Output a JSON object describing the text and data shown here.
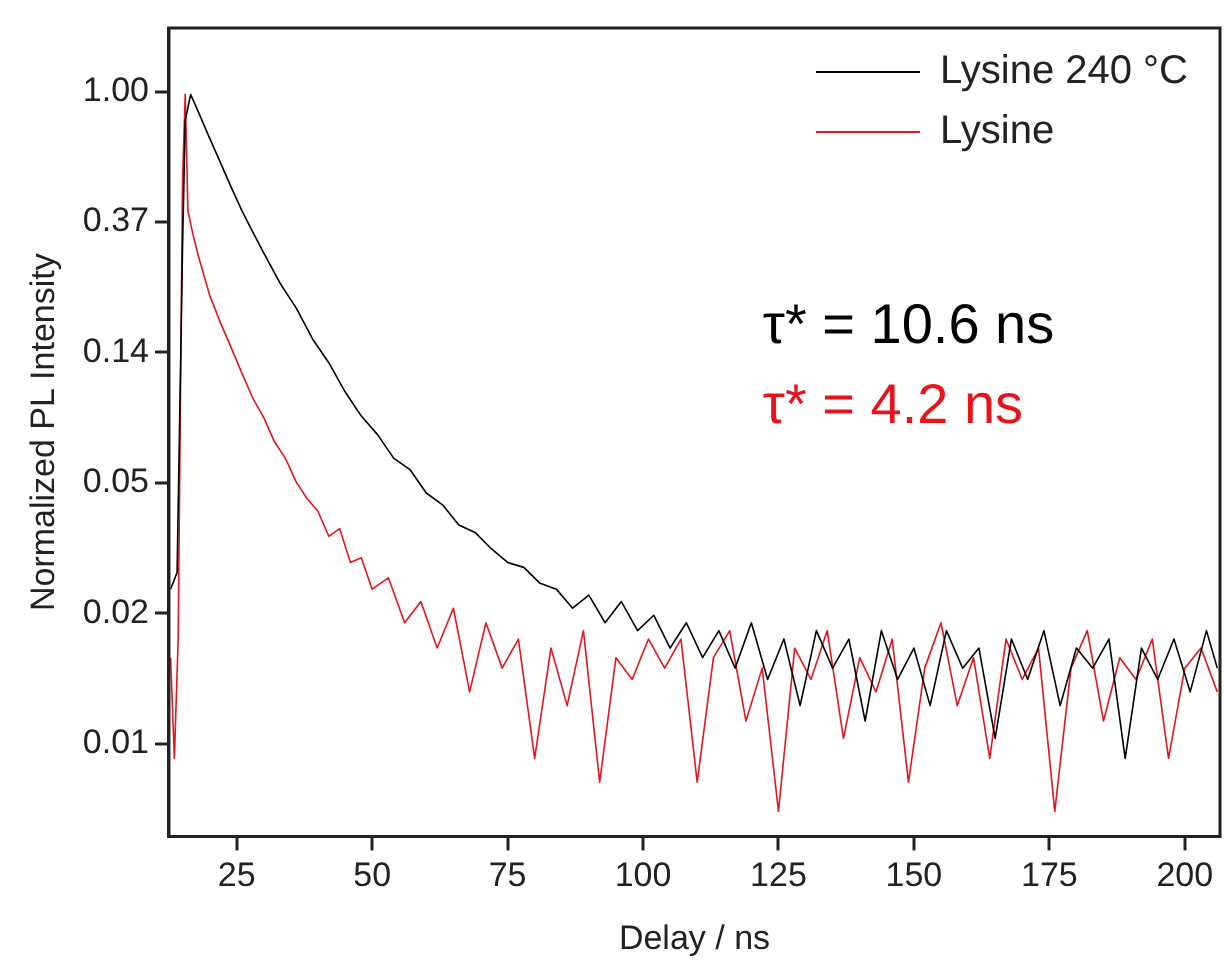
{
  "chart_data": {
    "type": "line",
    "xlabel": "Delay / ns",
    "ylabel": "Normalized PL Intensity",
    "log": "y",
    "grid": false,
    "legend": "top right",
    "marker": "none",
    "line_style": "solid",
    "xlim": [
      12.5,
      206.5
    ],
    "xticks": [
      25,
      50,
      75,
      100,
      125,
      150,
      175,
      200
    ],
    "ylim": [
      0.0033,
      1.63
    ],
    "yticks": [
      {
        "value": 1,
        "label": "1.00"
      },
      {
        "value": 0.3679,
        "label": "0.37"
      },
      {
        "value": 0.1353,
        "label": "0.14"
      },
      {
        "value": 0.0498,
        "label": "0.05"
      },
      {
        "value": 0.0183,
        "label": "0.02"
      },
      {
        "value": 0.0067,
        "label": "0.01"
      }
    ],
    "annotations": [
      "τ* = 10.6 ns",
      "τ* = 4.2 ns"
    ],
    "series": [
      {
        "name": "Lysine 240 °C",
        "color": "#000000",
        "x": [
          12.8,
          14,
          15,
          15.5,
          16.5,
          18,
          20,
          22,
          24,
          26,
          28,
          30,
          33,
          36,
          39,
          42,
          45,
          48,
          51,
          54,
          57,
          60,
          63,
          66,
          69,
          72,
          75,
          78,
          81,
          84,
          87,
          90,
          93,
          96,
          99,
          102,
          105,
          108,
          111,
          114,
          117,
          120,
          123,
          126,
          129,
          132,
          135,
          138,
          141,
          144,
          147,
          150,
          153,
          156,
          159,
          162,
          165,
          168,
          171,
          174,
          177,
          180,
          183,
          186,
          189,
          192,
          195,
          198,
          201,
          204,
          206
        ],
        "values": [
          0.022,
          0.025,
          0.3,
          0.8,
          0.98,
          0.85,
          0.7,
          0.58,
          0.48,
          0.4,
          0.34,
          0.29,
          0.23,
          0.19,
          0.15,
          0.125,
          0.1,
          0.083,
          0.072,
          0.06,
          0.055,
          0.046,
          0.042,
          0.036,
          0.034,
          0.03,
          0.027,
          0.026,
          0.023,
          0.022,
          0.019,
          0.021,
          0.017,
          0.02,
          0.016,
          0.018,
          0.014,
          0.017,
          0.013,
          0.016,
          0.012,
          0.017,
          0.011,
          0.015,
          0.009,
          0.016,
          0.012,
          0.015,
          0.008,
          0.016,
          0.011,
          0.014,
          0.009,
          0.016,
          0.012,
          0.014,
          0.007,
          0.015,
          0.011,
          0.016,
          0.009,
          0.014,
          0.012,
          0.015,
          0.006,
          0.014,
          0.011,
          0.015,
          0.01,
          0.016,
          0.012
        ]
      },
      {
        "name": "Lysine",
        "color": "#e8141c",
        "x": [
          12.8,
          13.5,
          14.2,
          15,
          15.5,
          16,
          17,
          18,
          20,
          22,
          24,
          26,
          28,
          30,
          32,
          34,
          36,
          38,
          40,
          42,
          44,
          46,
          48,
          50,
          53,
          56,
          59,
          62,
          65,
          68,
          71,
          74,
          77,
          80,
          83,
          86,
          89,
          92,
          95,
          98,
          101,
          104,
          107,
          110,
          113,
          116,
          119,
          122,
          125,
          128,
          131,
          134,
          137,
          140,
          143,
          146,
          149,
          152,
          155,
          158,
          161,
          164,
          167,
          170,
          173,
          176,
          179,
          182,
          185,
          188,
          191,
          194,
          197,
          200,
          203,
          206
        ],
        "values": [
          0.013,
          0.006,
          0.015,
          0.5,
          0.98,
          0.4,
          0.33,
          0.28,
          0.21,
          0.17,
          0.14,
          0.115,
          0.095,
          0.082,
          0.068,
          0.06,
          0.05,
          0.044,
          0.04,
          0.033,
          0.035,
          0.027,
          0.028,
          0.022,
          0.024,
          0.017,
          0.02,
          0.014,
          0.019,
          0.01,
          0.017,
          0.012,
          0.015,
          0.006,
          0.014,
          0.009,
          0.016,
          0.005,
          0.013,
          0.011,
          0.015,
          0.012,
          0.015,
          0.005,
          0.013,
          0.016,
          0.008,
          0.012,
          0.004,
          0.014,
          0.011,
          0.016,
          0.007,
          0.013,
          0.01,
          0.015,
          0.005,
          0.012,
          0.017,
          0.009,
          0.013,
          0.006,
          0.015,
          0.011,
          0.014,
          0.004,
          0.012,
          0.016,
          0.008,
          0.013,
          0.011,
          0.015,
          0.006,
          0.012,
          0.014,
          0.01
        ]
      }
    ]
  }
}
